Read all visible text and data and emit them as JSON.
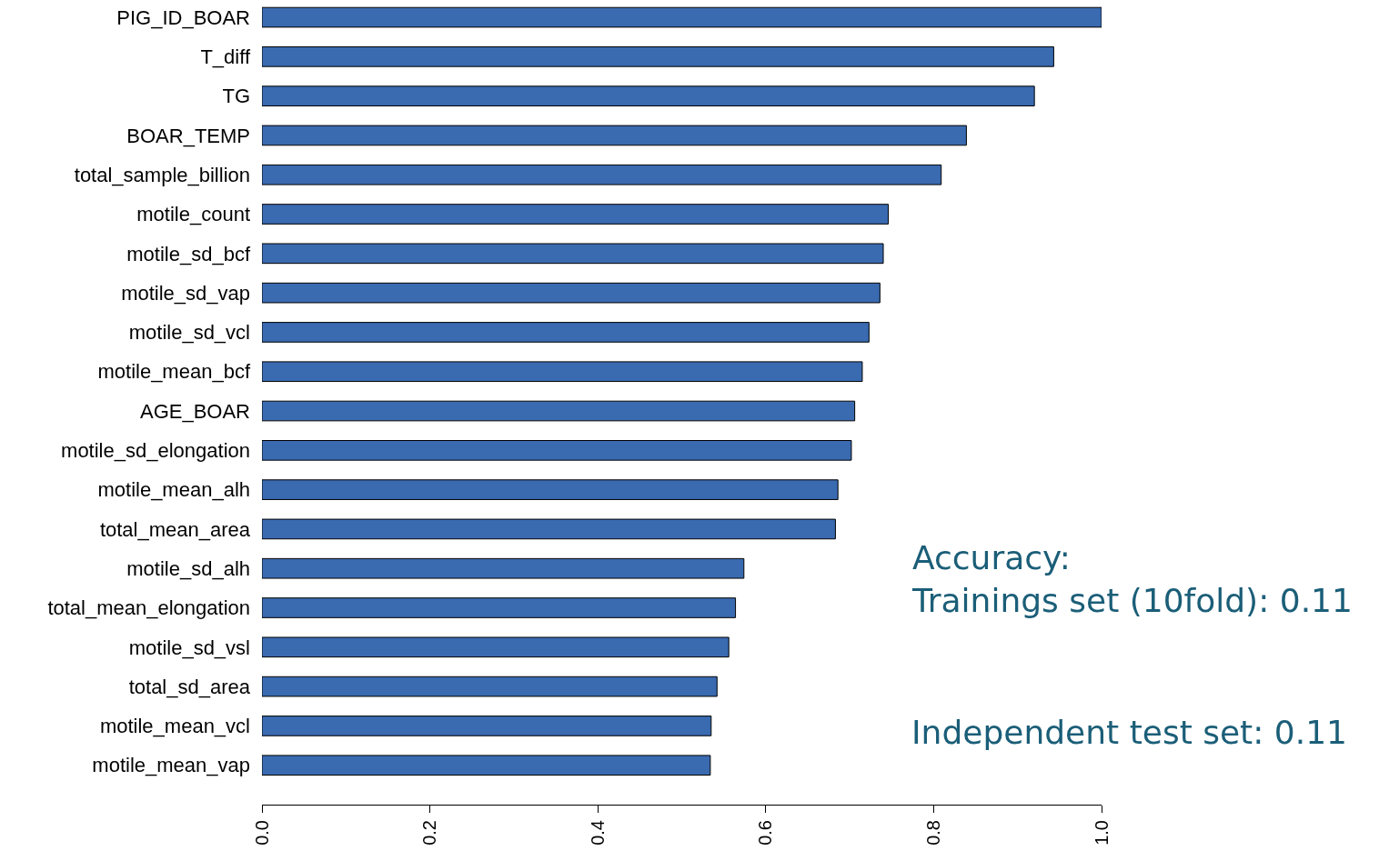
{
  "chart_data": {
    "type": "bar",
    "orientation": "horizontal",
    "categories": [
      "PIG_ID_BOAR",
      "T_diff",
      "TG",
      "BOAR_TEMP",
      "total_sample_billion",
      "motile_count",
      "motile_sd_bcf",
      "motile_sd_vap",
      "motile_sd_vcl",
      "motile_mean_bcf",
      "AGE_BOAR",
      "motile_sd_elongation",
      "motile_mean_alh",
      "total_mean_area",
      "motile_sd_alh",
      "total_mean_elongation",
      "motile_sd_vsl",
      "total_sd_area",
      "motile_mean_vcl",
      "motile_mean_vap"
    ],
    "values": [
      1.0,
      0.943,
      0.92,
      0.839,
      0.809,
      0.746,
      0.74,
      0.736,
      0.723,
      0.715,
      0.706,
      0.702,
      0.686,
      0.683,
      0.574,
      0.564,
      0.556,
      0.542,
      0.535,
      0.534
    ],
    "color": "#3a6ab0",
    "xlim": [
      0,
      1.0
    ],
    "xticks": [
      {
        "value": 0,
        "label": "0.0"
      },
      0.2,
      0.4,
      0.6,
      0.8,
      {
        "value": 1.0,
        "label": "1.0"
      }
    ],
    "annotations": [
      "Accuracy:\nTrainings set (10fold): 0.11",
      "Independent test set: 0.11"
    ]
  }
}
